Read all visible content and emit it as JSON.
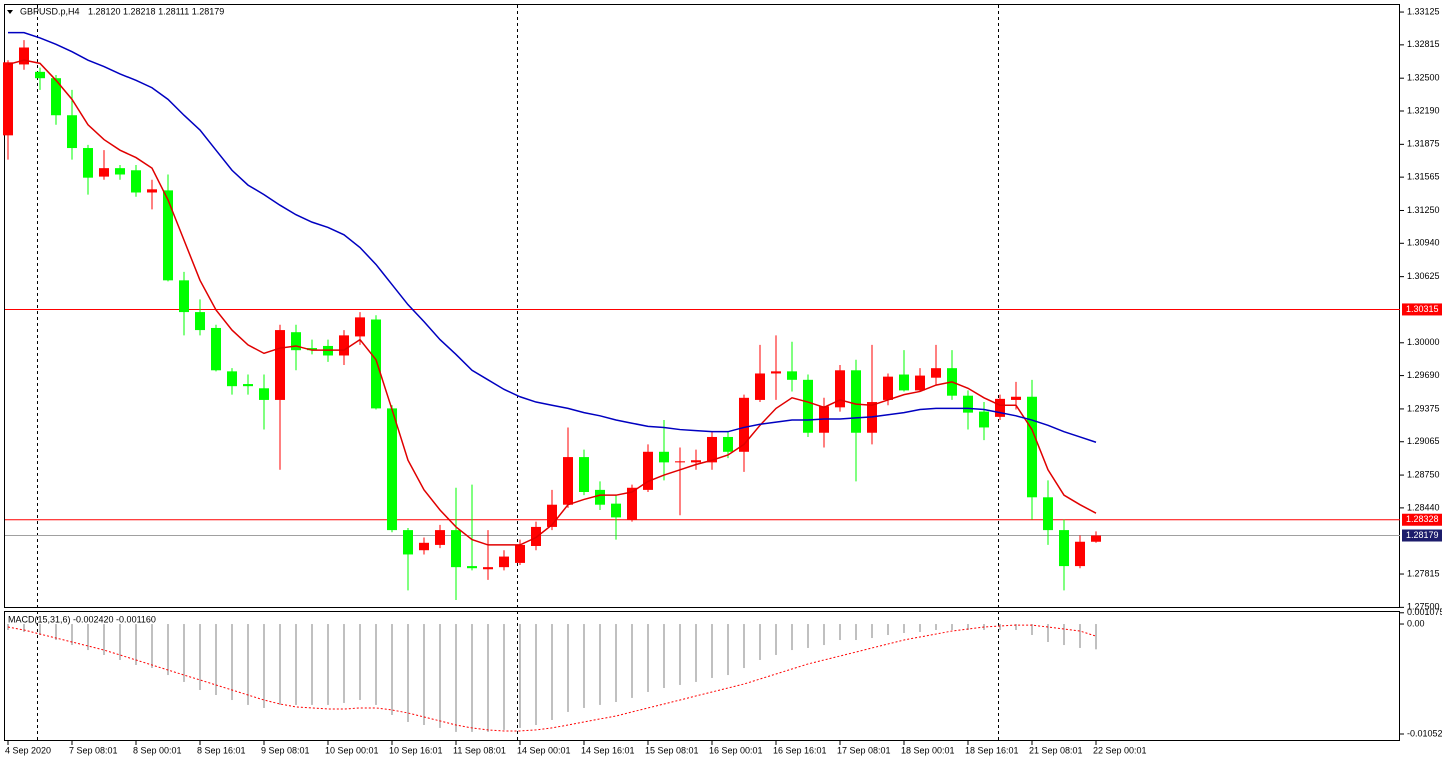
{
  "chart_data": {
    "type": "candlestick",
    "title": "GBPUSD.p,H4",
    "subtitle": "1.28120 1.28218 1.28111 1.28179",
    "categories": [
      "4 Sep 2020",
      null,
      null,
      null,
      "7 Sep 08:01",
      null,
      null,
      null,
      "8 Sep 00:01",
      null,
      null,
      null,
      "8 Sep 16:01",
      null,
      null,
      null,
      "9 Sep 08:01",
      null,
      null,
      null,
      "10 Sep 00:01",
      null,
      null,
      null,
      "10 Sep 16:01",
      null,
      null,
      null,
      "11 Sep 08:01",
      null,
      null,
      null,
      "14 Sep 00:01",
      null,
      null,
      null,
      "14 Sep 16:01",
      null,
      null,
      null,
      "15 Sep 08:01",
      null,
      null,
      null,
      "16 Sep 00:01",
      null,
      null,
      null,
      "16 Sep 16:01",
      null,
      null,
      null,
      "17 Sep 08:01",
      null,
      null,
      null,
      "18 Sep 00:01",
      null,
      null,
      null,
      "18 Sep 16:01",
      null,
      null,
      null,
      "21 Sep 08:01",
      null,
      null,
      null,
      "22 Sep 00:01"
    ],
    "open": [
      1.3196,
      1.3263,
      1.3256,
      1.325,
      1.3215,
      1.3184,
      1.3157,
      1.3165,
      1.3163,
      1.3142,
      1.3144,
      1.3059,
      1.3029,
      1.3014,
      1.2973,
      1.2961,
      1.2957,
      1.2946,
      1.301,
      1.2995,
      1.2997,
      1.2988,
      1.3006,
      1.3022,
      1.2938,
      1.2823,
      1.2804,
      1.2809,
      1.2823,
      1.2789,
      1.2786,
      1.2788,
      1.2792,
      1.2808,
      1.2826,
      1.2847,
      1.2892,
      1.2861,
      1.2848,
      1.2833,
      1.2861,
      1.2897,
      1.2887,
      1.2887,
      1.2887,
      1.2911,
      1.2897,
      1.2946,
      1.2971,
      1.2973,
      1.2965,
      1.2915,
      1.2939,
      1.2974,
      1.2915,
      1.2946,
      1.297,
      1.2955,
      1.2967,
      1.2976,
      1.295,
      1.2935,
      1.293,
      1.2946,
      1.2949,
      1.2854,
      1.2823,
      1.2789,
      1.2812
    ],
    "high": [
      1.3267,
      1.3286,
      1.326,
      1.3253,
      1.3239,
      1.3187,
      1.3182,
      1.3168,
      1.3168,
      1.3154,
      1.3159,
      1.3067,
      1.3041,
      1.3017,
      1.2976,
      1.297,
      1.297,
      1.3017,
      1.3017,
      1.3003,
      1.3003,
      1.3012,
      1.3029,
      1.3026,
      1.2941,
      1.2825,
      1.2816,
      1.2828,
      1.2863,
      1.2866,
      1.2823,
      1.2804,
      1.2814,
      1.2831,
      1.2861,
      1.292,
      1.2899,
      1.2869,
      1.2856,
      1.2866,
      1.2904,
      1.2927,
      1.2901,
      1.2899,
      1.2916,
      1.2916,
      1.2951,
      1.2998,
      1.3007,
      1.3001,
      1.297,
      1.2948,
      1.2979,
      1.2984,
      1.2998,
      1.2971,
      1.2993,
      1.2976,
      1.2998,
      1.2993,
      1.2955,
      1.2944,
      1.2951,
      1.2963,
      1.2965,
      1.287,
      1.2833,
      1.2818,
      1.28218
    ],
    "low": [
      1.3173,
      1.3258,
      1.3239,
      1.3206,
      1.3173,
      1.314,
      1.3154,
      1.3154,
      1.3138,
      1.3126,
      1.3058,
      1.3007,
      1.3007,
      1.2973,
      1.2951,
      1.2951,
      1.2918,
      1.288,
      1.2974,
      1.2989,
      1.2982,
      1.2979,
      1.2998,
      1.2937,
      1.2821,
      1.2766,
      1.28,
      1.2806,
      1.2757,
      1.2785,
      1.2776,
      1.2785,
      1.279,
      1.2804,
      1.2823,
      1.2844,
      1.2856,
      1.2842,
      1.2814,
      1.2831,
      1.2859,
      1.287,
      1.2837,
      1.288,
      1.288,
      1.2891,
      1.2878,
      1.2944,
      1.2946,
      1.2954,
      1.2911,
      1.2901,
      1.2935,
      1.2869,
      1.2904,
      1.2941,
      1.2954,
      1.2954,
      1.296,
      1.2946,
      1.2918,
      1.2908,
      1.2927,
      1.2937,
      1.2833,
      1.2809,
      1.2766,
      1.2787,
      1.28111
    ],
    "close": [
      1.3265,
      1.3279,
      1.325,
      1.3215,
      1.3184,
      1.3156,
      1.3165,
      1.3159,
      1.3142,
      1.3145,
      1.3059,
      1.3029,
      1.3012,
      1.2974,
      1.2959,
      1.2959,
      1.2946,
      1.3012,
      1.2993,
      1.2993,
      1.2988,
      1.3007,
      1.3024,
      1.2938,
      1.2823,
      1.28,
      1.2811,
      1.2823,
      1.2788,
      1.2787,
      1.2788,
      1.2798,
      1.2809,
      1.2826,
      1.2847,
      1.2892,
      1.2859,
      1.2847,
      1.2835,
      1.2863,
      1.2897,
      1.2887,
      1.2888,
      1.2889,
      1.2911,
      1.2897,
      1.2948,
      1.2971,
      1.2973,
      1.2965,
      1.2915,
      1.294,
      1.2974,
      1.2915,
      1.2944,
      1.2968,
      1.2955,
      1.2969,
      1.2976,
      1.295,
      1.2934,
      1.292,
      1.2947,
      1.2949,
      1.2854,
      1.2823,
      1.2789,
      1.2812,
      1.28179
    ],
    "up_color": "#ff0000",
    "down_color": "#00ff00",
    "moving_averages": [
      {
        "color": "#e00000",
        "values": [
          1.3263,
          1.3267,
          1.3264,
          1.3248,
          1.323,
          1.3206,
          1.3192,
          1.3182,
          1.3175,
          1.3165,
          1.3135,
          1.3097,
          1.3059,
          1.3031,
          1.3012,
          1.2998,
          1.299,
          1.2995,
          1.2997,
          1.2993,
          1.2993,
          1.2993,
          1.3003,
          1.2984,
          1.2937,
          1.2889,
          1.2861,
          1.2842,
          1.2826,
          1.2814,
          1.2809,
          1.2809,
          1.2809,
          1.2816,
          1.2828,
          1.2847,
          1.2852,
          1.2856,
          1.2856,
          1.2859,
          1.2869,
          1.2875,
          1.288,
          1.2885,
          1.2889,
          1.2894,
          1.2904,
          1.2922,
          1.2938,
          1.2948,
          1.2944,
          1.2939,
          1.2946,
          1.2942,
          1.2941,
          1.2946,
          1.2951,
          1.2954,
          1.296,
          1.2963,
          1.2957,
          1.2948,
          1.2941,
          1.2941,
          1.2918,
          1.288,
          1.2856,
          1.2847,
          1.2839
        ]
      },
      {
        "color": "#0000c0",
        "values": [
          1.3293,
          1.3293,
          1.3288,
          1.3282,
          1.3275,
          1.3267,
          1.3261,
          1.3254,
          1.3248,
          1.3241,
          1.323,
          1.3215,
          1.3201,
          1.3182,
          1.3163,
          1.3149,
          1.314,
          1.313,
          1.3121,
          1.3114,
          1.3109,
          1.3102,
          1.309,
          1.3074,
          1.3055,
          1.3036,
          1.302,
          1.3003,
          1.2989,
          1.2974,
          1.2965,
          1.2956,
          1.2949,
          1.2944,
          1.2941,
          1.2938,
          1.2934,
          1.2931,
          1.2927,
          1.2924,
          1.2921,
          1.292,
          1.2918,
          1.2917,
          1.2916,
          1.2916,
          1.292,
          1.2923,
          1.2925,
          1.2927,
          1.2927,
          1.2928,
          1.2928,
          1.2929,
          1.293,
          1.2932,
          1.2934,
          1.2937,
          1.2938,
          1.2938,
          1.2938,
          1.2937,
          1.2934,
          1.2931,
          1.2927,
          1.2922,
          1.2916,
          1.2911,
          1.2906
        ]
      }
    ],
    "levels": [
      {
        "value": 1.30315,
        "label": "1.30315"
      },
      {
        "value": 1.28328,
        "label": "1.28328"
      }
    ],
    "level_color": "#ff0000",
    "current_price": {
      "value": 1.28179,
      "label": "1.28179"
    },
    "current_color": "#1c1c6b",
    "ylim": [
      1.27494,
      1.33201
    ],
    "yticks": [
      {
        "value": 1.33125,
        "label": "1.33125"
      },
      {
        "value": 1.32815,
        "label": "1.32815"
      },
      {
        "value": 1.325,
        "label": "1.32500"
      },
      {
        "value": 1.3219,
        "label": "1.32190"
      },
      {
        "value": 1.31875,
        "label": "1.31875"
      },
      {
        "value": 1.31565,
        "label": "1.31565"
      },
      {
        "value": 1.3125,
        "label": "1.31250"
      },
      {
        "value": 1.3094,
        "label": "1.30940"
      },
      {
        "value": 1.30625,
        "label": "1.30625"
      },
      {
        "value": 1.3,
        "label": "1.30000"
      },
      {
        "value": 1.2969,
        "label": "1.29690"
      },
      {
        "value": 1.29375,
        "label": "1.29375"
      },
      {
        "value": 1.29065,
        "label": "1.29065"
      },
      {
        "value": 1.2875,
        "label": "1.28750"
      },
      {
        "value": 1.2844,
        "label": "1.28440"
      },
      {
        "value": 1.27815,
        "label": "1.27815"
      },
      {
        "value": 1.275,
        "label": "1.27500"
      }
    ],
    "macd": {
      "label": "MACD(15,31,6) -0.002420 -0.001160",
      "main_color": "#c0c0c0",
      "signal_color": "#ff0000",
      "main": [
        -0.00057,
        -0.00076,
        -0.00105,
        -0.00153,
        -0.00201,
        -0.00249,
        -0.00296,
        -0.00344,
        -0.00392,
        -0.00421,
        -0.00488,
        -0.00554,
        -0.00631,
        -0.00679,
        -0.00727,
        -0.00774,
        -0.00803,
        -0.00774,
        -0.00774,
        -0.00774,
        -0.00774,
        -0.00755,
        -0.00727,
        -0.00774,
        -0.0087,
        -0.00937,
        -0.00966,
        -0.00994,
        -0.01032,
        -0.01032,
        -0.01032,
        -0.01013,
        -0.00994,
        -0.00966,
        -0.00918,
        -0.00841,
        -0.00803,
        -0.00774,
        -0.00746,
        -0.00707,
        -0.0065,
        -0.00612,
        -0.00583,
        -0.00554,
        -0.00516,
        -0.00488,
        -0.00421,
        -0.00344,
        -0.00296,
        -0.00249,
        -0.00229,
        -0.00201,
        -0.00153,
        -0.00153,
        -0.00134,
        -0.00105,
        -0.00086,
        -0.00076,
        -0.00057,
        -0.00057,
        -0.00057,
        -0.00057,
        -0.00057,
        -0.00057,
        -0.00105,
        -0.00172,
        -0.00201,
        -0.00229,
        -0.00242
      ],
      "signal": [
        -0.00029,
        -0.00057,
        -0.00096,
        -0.00134,
        -0.00172,
        -0.0021,
        -0.00249,
        -0.00296,
        -0.00344,
        -0.00392,
        -0.0044,
        -0.00488,
        -0.00535,
        -0.00583,
        -0.00631,
        -0.00679,
        -0.00727,
        -0.00765,
        -0.00793,
        -0.00803,
        -0.00813,
        -0.00813,
        -0.00803,
        -0.00803,
        -0.00822,
        -0.00851,
        -0.00889,
        -0.00927,
        -0.00966,
        -0.00994,
        -0.01013,
        -0.01023,
        -0.01023,
        -0.01013,
        -0.00994,
        -0.00966,
        -0.00937,
        -0.00908,
        -0.0088,
        -0.00841,
        -0.00803,
        -0.00765,
        -0.00727,
        -0.00688,
        -0.0065,
        -0.00612,
        -0.00574,
        -0.00526,
        -0.00478,
        -0.0043,
        -0.00382,
        -0.00344,
        -0.00306,
        -0.00268,
        -0.00229,
        -0.00191,
        -0.00153,
        -0.00124,
        -0.00096,
        -0.00067,
        -0.00048,
        -0.00029,
        -0.00019,
        -0.0001,
        -0.0001,
        -0.00029,
        -0.00048,
        -0.00067,
        -0.00116
      ],
      "ylim": [
        -0.01119,
        0.00115
      ],
      "yticks": [
        0.001075,
        {
          "value": 0,
          "label": "0.00"
        },
        -0.01052
      ]
    }
  }
}
